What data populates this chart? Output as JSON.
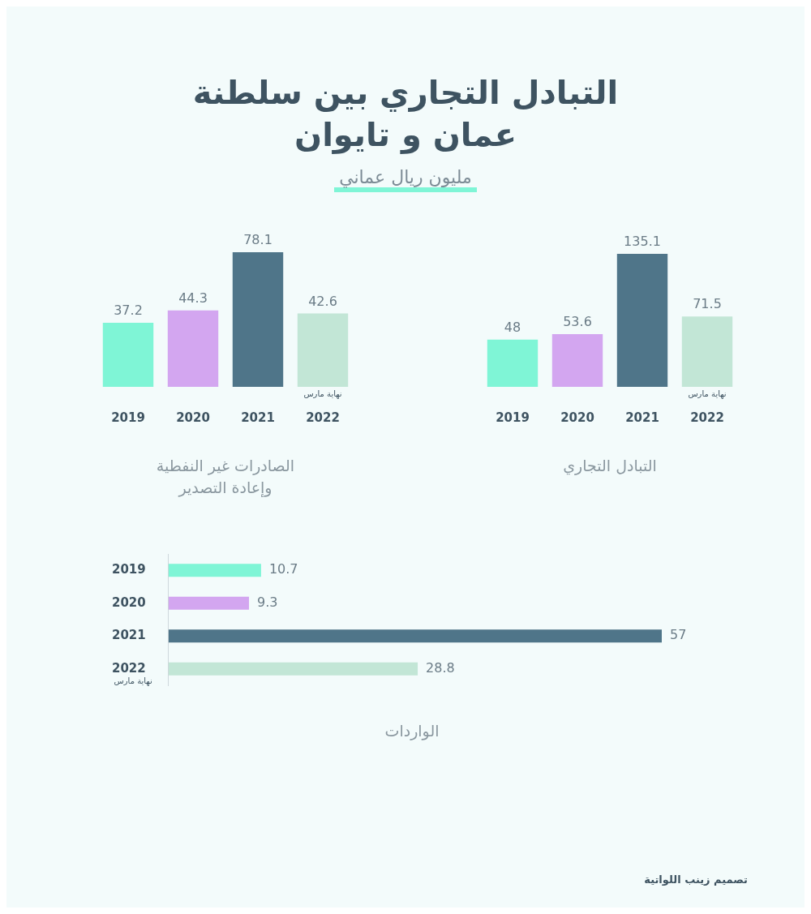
{
  "chart_data": [
    {
      "type": "bar",
      "title": "التبادل التجاري بين سلطنة عمان و تايوان",
      "subtitle": "مليون ريال عماني",
      "xlabel": "التبادل التجاري",
      "categories": [
        "2019",
        "2020",
        "2021",
        "2022"
      ],
      "values": [
        48,
        53.6,
        135.1,
        71.5
      ],
      "colors": [
        "#7ff5d6",
        "#d3a6f0",
        "#4f7589",
        "#c2e6d6"
      ],
      "data_labels": true,
      "annotations": [
        "نهاية مارس",
        "تصميم زينب اللواتية"
      ]
    },
    {
      "type": "bar",
      "xlabel": "الصادرات غير النفطية وإعادة التصدير",
      "categories": [
        "2019",
        "2020",
        "2021",
        "2022"
      ],
      "values": [
        37.2,
        44.3,
        78.1,
        42.6
      ],
      "colors": [
        "#7ff5d6",
        "#d3a6f0",
        "#4f7589",
        "#c2e6d6"
      ],
      "data_labels": true,
      "annotations": [
        "نهاية مارس"
      ]
    },
    {
      "type": "bar",
      "orientation": "horizontal",
      "xlabel": "الواردات",
      "categories": [
        "2019",
        "2020",
        "2021",
        "2022"
      ],
      "values": [
        10.7,
        9.3,
        57,
        28.8
      ],
      "colors": [
        "#7ff5d6",
        "#d3a6f0",
        "#4f7589",
        "#c2e6d6"
      ],
      "data_labels": true,
      "annotations": [
        "نهاية مارس"
      ]
    }
  ]
}
